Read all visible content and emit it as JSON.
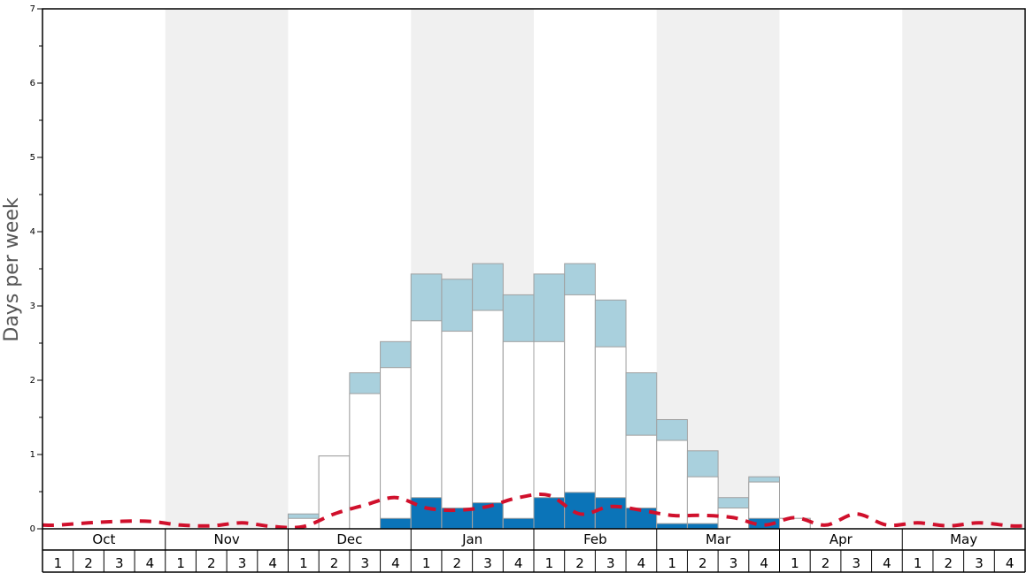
{
  "chart_data": {
    "type": "bar",
    "ylabel": "Days per week",
    "ylim": [
      0,
      7
    ],
    "yticks": [
      "0",
      "1",
      "2",
      "3",
      "4",
      "5",
      "6",
      "7"
    ],
    "months": [
      "Oct",
      "Nov",
      "Dec",
      "Jan",
      "Feb",
      "Mar",
      "Apr",
      "May"
    ],
    "weeks": [
      "1",
      "2",
      "3",
      "4"
    ],
    "colors": {
      "light_blue": "#a9d0dd",
      "dark_blue": "#0b74b8",
      "white": "#ffffff",
      "dashed_line": "#d0102c",
      "shade": "#f0f0f0"
    },
    "series": [
      {
        "values": [
          0,
          0,
          0,
          0,
          0,
          0,
          0,
          0,
          0.2,
          0.98,
          2.1,
          2.52,
          3.43,
          3.36,
          3.57,
          3.15,
          3.43,
          3.57,
          3.08,
          2.1,
          1.47,
          1.05,
          0.42,
          0.7,
          0.14,
          0,
          0,
          0,
          0,
          0,
          0,
          0
        ]
      },
      {
        "values": [
          0,
          0,
          0,
          0,
          0,
          0,
          0,
          0,
          0.14,
          0.98,
          1.82,
          2.17,
          2.8,
          2.66,
          2.94,
          2.52,
          2.52,
          3.15,
          2.45,
          1.26,
          1.19,
          0.7,
          0.28,
          0.63,
          0.14,
          0,
          0,
          0,
          0,
          0,
          0,
          0
        ]
      },
      {
        "values": [
          0,
          0,
          0,
          0,
          0,
          0,
          0,
          0,
          0,
          0,
          0,
          0.14,
          0.42,
          0.28,
          0.35,
          0.14,
          0.42,
          0.49,
          0.42,
          0.28,
          0.07,
          0.07,
          0,
          0.14,
          0,
          0,
          0,
          0,
          0,
          0,
          0,
          0
        ]
      },
      {
        "values": [
          0.05,
          0.08,
          0.1,
          0.1,
          0.05,
          0.04,
          0.08,
          0.03,
          0.03,
          0.2,
          0.32,
          0.42,
          0.28,
          0.25,
          0.3,
          0.42,
          0.45,
          0.2,
          0.3,
          0.25,
          0.18,
          0.18,
          0.15,
          0.05,
          0.15,
          0.05,
          0.2,
          0.05,
          0.08,
          0.04,
          0.08,
          0.04
        ]
      }
    ]
  }
}
